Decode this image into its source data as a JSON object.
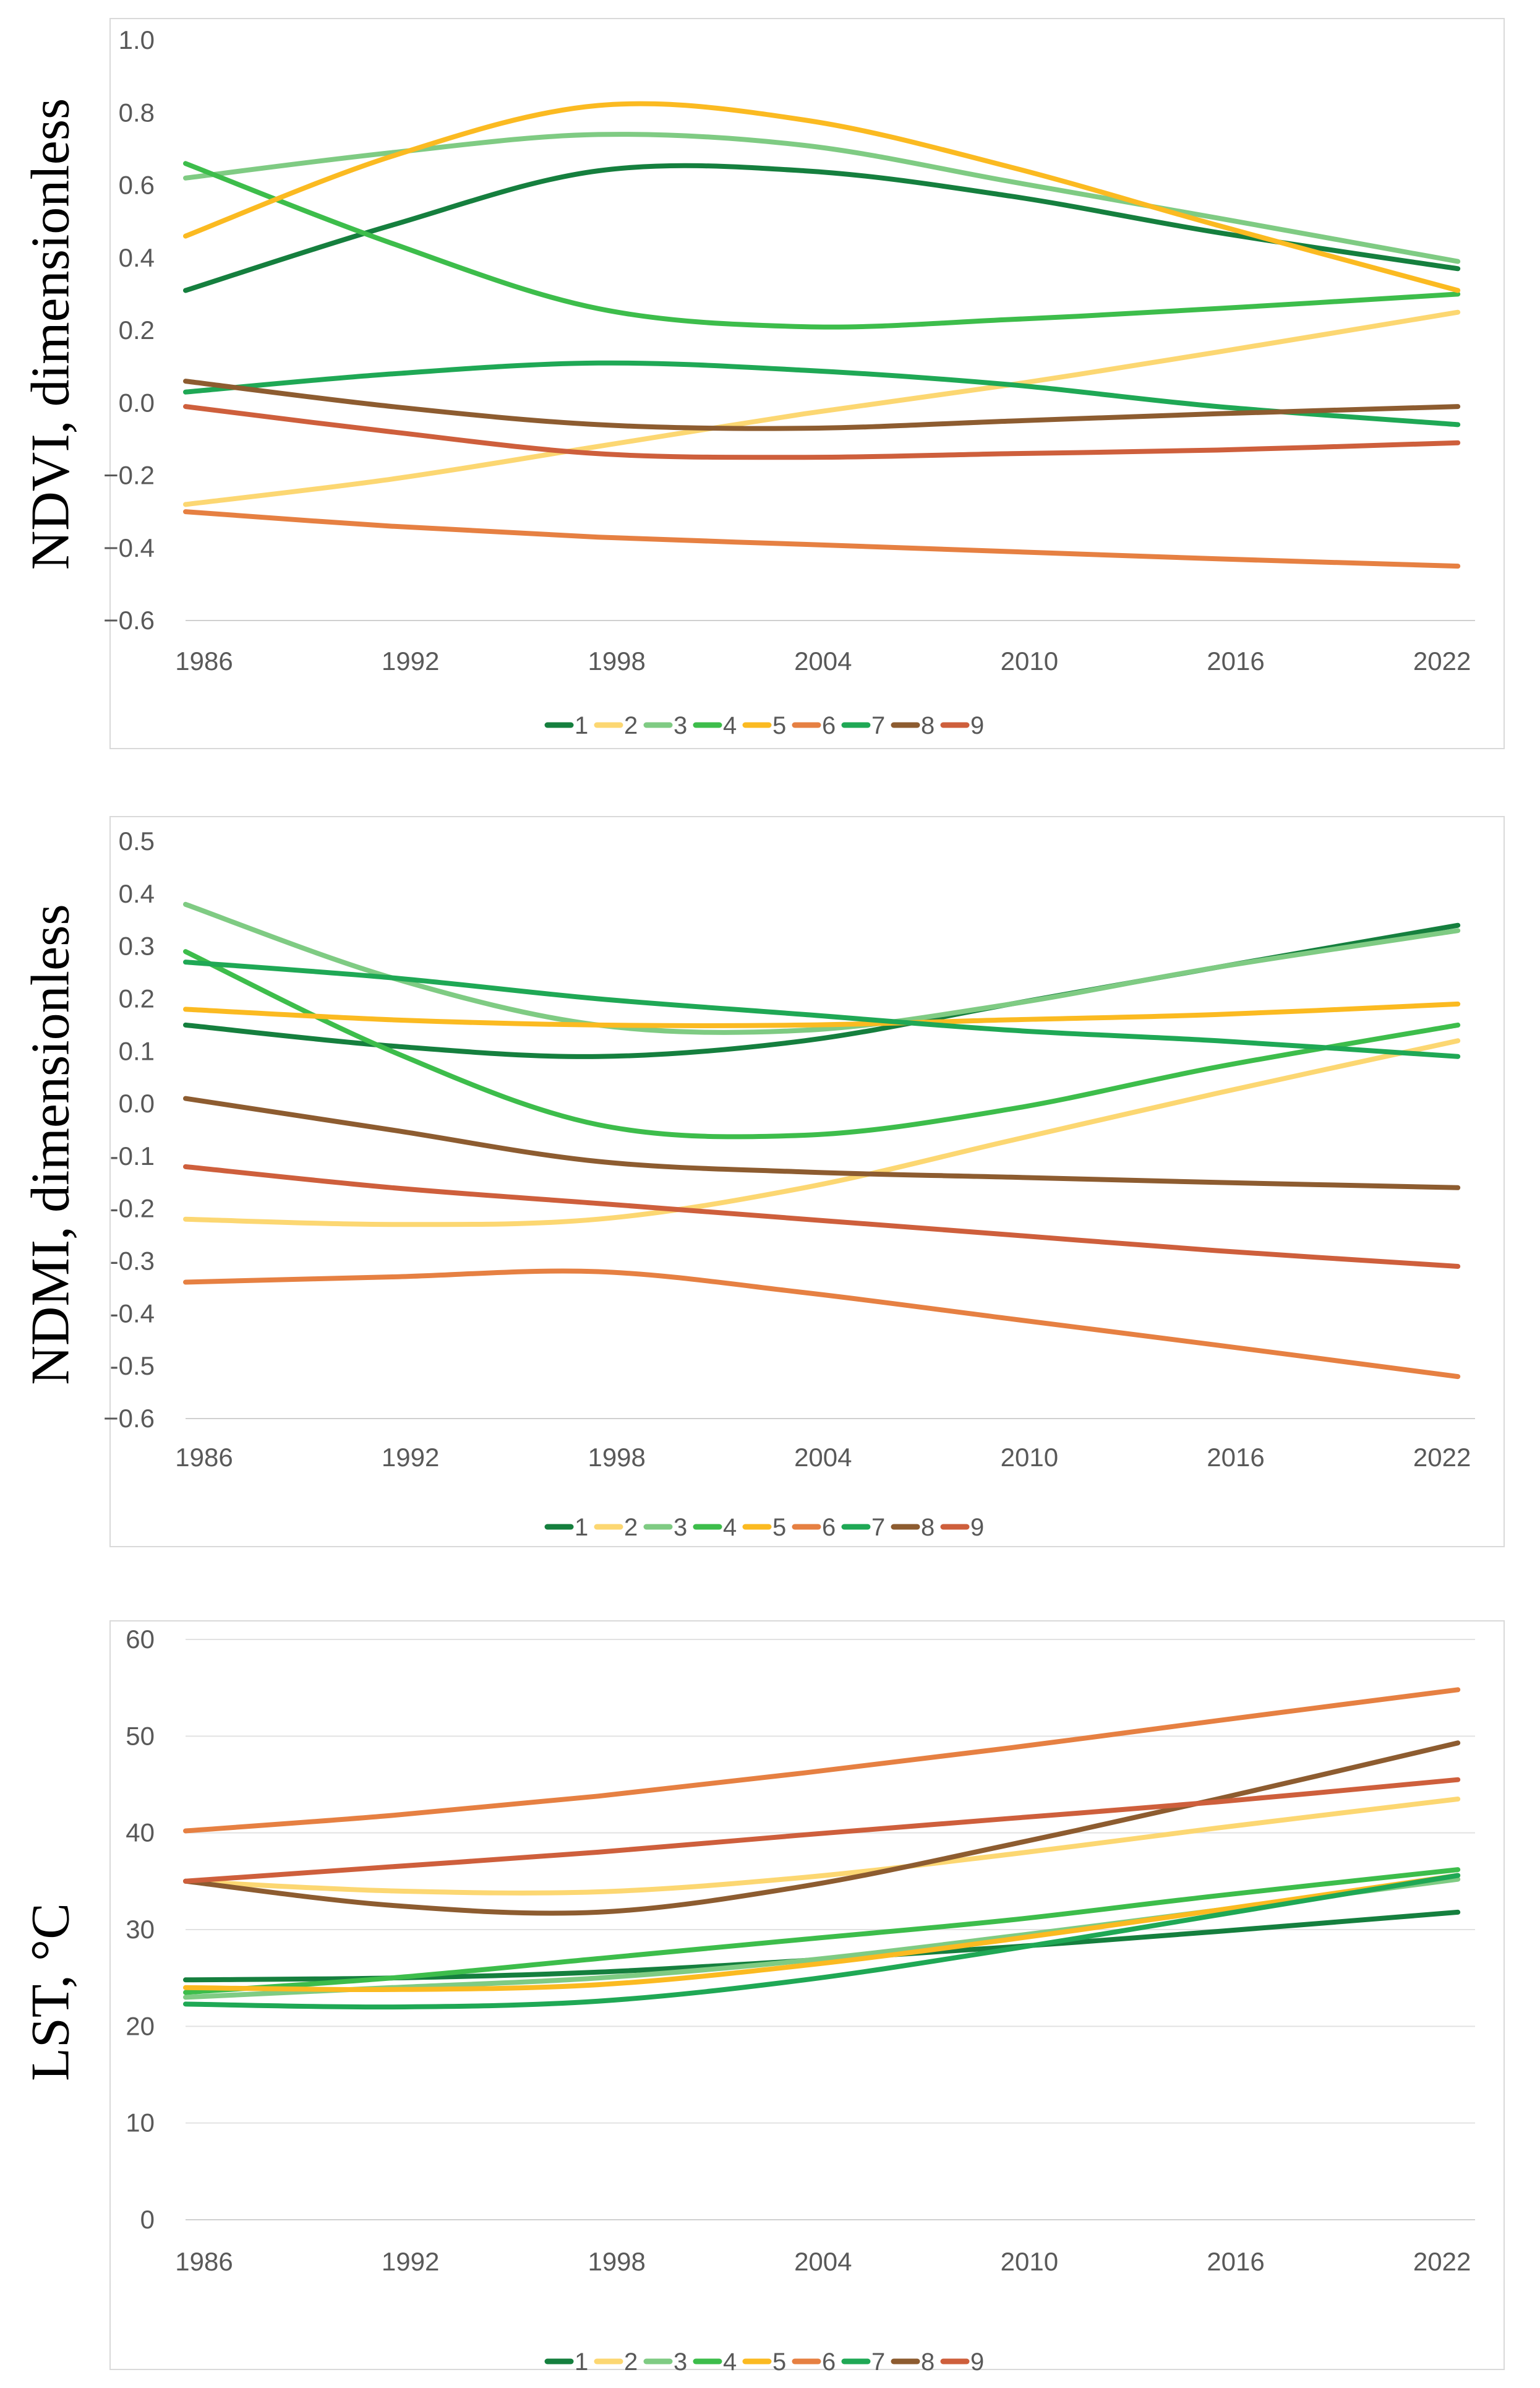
{
  "chart_data": [
    {
      "type": "line",
      "ylabel": "NDVI, dimensionless",
      "xlabel": "",
      "x_ticks": [
        "1986",
        "1992",
        "1998",
        "2004",
        "2010",
        "2016",
        "2022"
      ],
      "y_ticks": [
        "1.0",
        "0.8",
        "0.6",
        "0.4",
        "0.2",
        "0.0",
        "−0.2",
        "−0.4",
        "−0.6"
      ],
      "xlim": [
        1986,
        2023.5
      ],
      "ylim": [
        -0.6,
        1.0
      ],
      "grid": false,
      "legend_position": "bottom",
      "series": [
        {
          "name": "1",
          "color": "#157F3E",
          "x": [
            1986,
            1992,
            1998,
            2004,
            2010,
            2016,
            2023
          ],
          "values": [
            0.31,
            0.49,
            0.64,
            0.64,
            0.57,
            0.47,
            0.37
          ]
        },
        {
          "name": "2",
          "color": "#FCD772",
          "x": [
            1986,
            1992,
            1998,
            2004,
            2010,
            2016,
            2023
          ],
          "values": [
            -0.28,
            -0.21,
            -0.12,
            -0.03,
            0.05,
            0.14,
            0.25
          ]
        },
        {
          "name": "3",
          "color": "#7FCB83",
          "x": [
            1986,
            1992,
            1998,
            2004,
            2010,
            2016,
            2023
          ],
          "values": [
            0.62,
            0.69,
            0.74,
            0.71,
            0.61,
            0.51,
            0.39
          ]
        },
        {
          "name": "4",
          "color": "#3DBD4B",
          "x": [
            1986,
            1992,
            1998,
            2004,
            2010,
            2016,
            2023
          ],
          "values": [
            0.66,
            0.44,
            0.26,
            0.21,
            0.23,
            0.26,
            0.3
          ]
        },
        {
          "name": "5",
          "color": "#FBBA21",
          "x": [
            1986,
            1992,
            1998,
            2004,
            2010,
            2016,
            2023
          ],
          "values": [
            0.46,
            0.68,
            0.82,
            0.78,
            0.65,
            0.49,
            0.31
          ]
        },
        {
          "name": "6",
          "color": "#E68042",
          "x": [
            1986,
            1992,
            1998,
            2004,
            2010,
            2016,
            2023
          ],
          "values": [
            -0.3,
            -0.34,
            -0.37,
            -0.39,
            -0.41,
            -0.43,
            -0.45
          ]
        },
        {
          "name": "7",
          "color": "#1FA855",
          "x": [
            1986,
            1992,
            1998,
            2004,
            2010,
            2016,
            2023
          ],
          "values": [
            0.03,
            0.08,
            0.11,
            0.09,
            0.05,
            -0.01,
            -0.06
          ]
        },
        {
          "name": "8",
          "color": "#8D5C30",
          "x": [
            1986,
            1992,
            1998,
            2004,
            2010,
            2016,
            2023
          ],
          "values": [
            0.06,
            -0.01,
            -0.06,
            -0.07,
            -0.05,
            -0.03,
            -0.01
          ]
        },
        {
          "name": "9",
          "color": "#CE5F3C",
          "x": [
            1986,
            1992,
            1998,
            2004,
            2010,
            2016,
            2023
          ],
          "values": [
            -0.01,
            -0.08,
            -0.14,
            -0.15,
            -0.14,
            -0.13,
            -0.11
          ]
        }
      ]
    },
    {
      "type": "line",
      "ylabel": "NDMI, dimensionless",
      "xlabel": "",
      "x_ticks": [
        "1986",
        "1992",
        "1998",
        "2004",
        "2010",
        "2016",
        "2022"
      ],
      "y_ticks": [
        "0.5",
        "0.4",
        "0.3",
        "0.2",
        "0.1",
        "0.0",
        "-0.1",
        "-0.2",
        "-0.3",
        "-0.4",
        "-0.5",
        "−0.6"
      ],
      "xlim": [
        1986,
        2023.5
      ],
      "ylim": [
        -0.6,
        0.5
      ],
      "grid": false,
      "legend_position": "bottom",
      "series": [
        {
          "name": "1",
          "color": "#157F3E",
          "x": [
            1986,
            1992,
            1998,
            2004,
            2010,
            2016,
            2023
          ],
          "values": [
            0.15,
            0.11,
            0.09,
            0.12,
            0.19,
            0.26,
            0.34
          ]
        },
        {
          "name": "2",
          "color": "#FCD772",
          "x": [
            1986,
            1992,
            1998,
            2004,
            2010,
            2016,
            2023
          ],
          "values": [
            -0.22,
            -0.23,
            -0.22,
            -0.16,
            -0.07,
            0.02,
            0.12
          ]
        },
        {
          "name": "3",
          "color": "#7FCB83",
          "x": [
            1986,
            1992,
            1998,
            2004,
            2010,
            2016,
            2023
          ],
          "values": [
            0.38,
            0.24,
            0.15,
            0.14,
            0.19,
            0.26,
            0.33
          ]
        },
        {
          "name": "4",
          "color": "#3DBD4B",
          "x": [
            1986,
            1992,
            1998,
            2004,
            2010,
            2016,
            2023
          ],
          "values": [
            0.29,
            0.1,
            -0.04,
            -0.06,
            -0.01,
            0.07,
            0.15
          ]
        },
        {
          "name": "5",
          "color": "#FBBA21",
          "x": [
            1986,
            1992,
            1998,
            2004,
            2010,
            2016,
            2023
          ],
          "values": [
            0.18,
            0.16,
            0.15,
            0.15,
            0.16,
            0.17,
            0.19
          ]
        },
        {
          "name": "6",
          "color": "#E68042",
          "x": [
            1986,
            1992,
            1998,
            2004,
            2010,
            2016,
            2023
          ],
          "values": [
            -0.34,
            -0.33,
            -0.32,
            -0.36,
            -0.41,
            -0.46,
            -0.52
          ]
        },
        {
          "name": "7",
          "color": "#1FA855",
          "x": [
            1986,
            1992,
            1998,
            2004,
            2010,
            2016,
            2023
          ],
          "values": [
            0.27,
            0.24,
            0.2,
            0.17,
            0.14,
            0.12,
            0.09
          ]
        },
        {
          "name": "8",
          "color": "#8D5C30",
          "x": [
            1986,
            1992,
            1998,
            2004,
            2010,
            2016,
            2023
          ],
          "values": [
            0.01,
            -0.05,
            -0.11,
            -0.13,
            -0.14,
            -0.15,
            -0.16
          ]
        },
        {
          "name": "9",
          "color": "#CE5F3C",
          "x": [
            1986,
            1992,
            1998,
            2004,
            2010,
            2016,
            2023
          ],
          "values": [
            -0.12,
            -0.16,
            -0.19,
            -0.22,
            -0.25,
            -0.28,
            -0.31
          ]
        }
      ]
    },
    {
      "type": "line",
      "ylabel": "LST, °C",
      "xlabel": "",
      "x_ticks": [
        "1986",
        "1992",
        "1998",
        "2004",
        "2010",
        "2016",
        "2022"
      ],
      "y_ticks": [
        "60",
        "50",
        "40",
        "30",
        "20",
        "10",
        "0"
      ],
      "xlim": [
        1986,
        2023.5
      ],
      "ylim": [
        0,
        60
      ],
      "grid": true,
      "legend_position": "bottom",
      "series": [
        {
          "name": "1",
          "color": "#157F3E",
          "x": [
            1986,
            1992,
            1998,
            2004,
            2010,
            2016,
            2023
          ],
          "values": [
            24.8,
            25.0,
            25.6,
            26.8,
            28.2,
            29.8,
            31.8
          ]
        },
        {
          "name": "2",
          "color": "#FCD772",
          "x": [
            1986,
            1992,
            1998,
            2004,
            2010,
            2016,
            2023
          ],
          "values": [
            35.0,
            34.0,
            33.9,
            35.4,
            37.8,
            40.5,
            43.5
          ]
        },
        {
          "name": "3",
          "color": "#7FCB83",
          "x": [
            1986,
            1992,
            1998,
            2004,
            2010,
            2016,
            2023
          ],
          "values": [
            23.0,
            24.0,
            25.0,
            26.8,
            29.3,
            32.0,
            35.2
          ]
        },
        {
          "name": "4",
          "color": "#3DBD4B",
          "x": [
            1986,
            1992,
            1998,
            2004,
            2010,
            2016,
            2023
          ],
          "values": [
            23.5,
            25.0,
            27.0,
            29.0,
            31.0,
            33.5,
            36.2
          ]
        },
        {
          "name": "5",
          "color": "#FBBA21",
          "x": [
            1986,
            1992,
            1998,
            2004,
            2010,
            2016,
            2023
          ],
          "values": [
            24.0,
            23.8,
            24.3,
            26.3,
            29.0,
            32.0,
            35.6
          ]
        },
        {
          "name": "6",
          "color": "#E68042",
          "x": [
            1986,
            1992,
            1998,
            2004,
            2010,
            2016,
            2023
          ],
          "values": [
            40.2,
            41.8,
            43.8,
            46.2,
            48.8,
            51.6,
            54.8
          ]
        },
        {
          "name": "7",
          "color": "#1FA855",
          "x": [
            1986,
            1992,
            1998,
            2004,
            2010,
            2016,
            2023
          ],
          "values": [
            22.3,
            22.0,
            22.6,
            24.8,
            28.0,
            31.5,
            35.6
          ]
        },
        {
          "name": "8",
          "color": "#8D5C30",
          "x": [
            1986,
            1992,
            1998,
            2004,
            2010,
            2016,
            2023
          ],
          "values": [
            35.0,
            32.5,
            31.8,
            34.5,
            38.8,
            43.5,
            49.3
          ]
        },
        {
          "name": "9",
          "color": "#CE5F3C",
          "x": [
            1986,
            1992,
            1998,
            2004,
            2010,
            2016,
            2023
          ],
          "values": [
            35.0,
            36.5,
            38.0,
            39.8,
            41.5,
            43.2,
            45.5
          ]
        }
      ]
    }
  ]
}
